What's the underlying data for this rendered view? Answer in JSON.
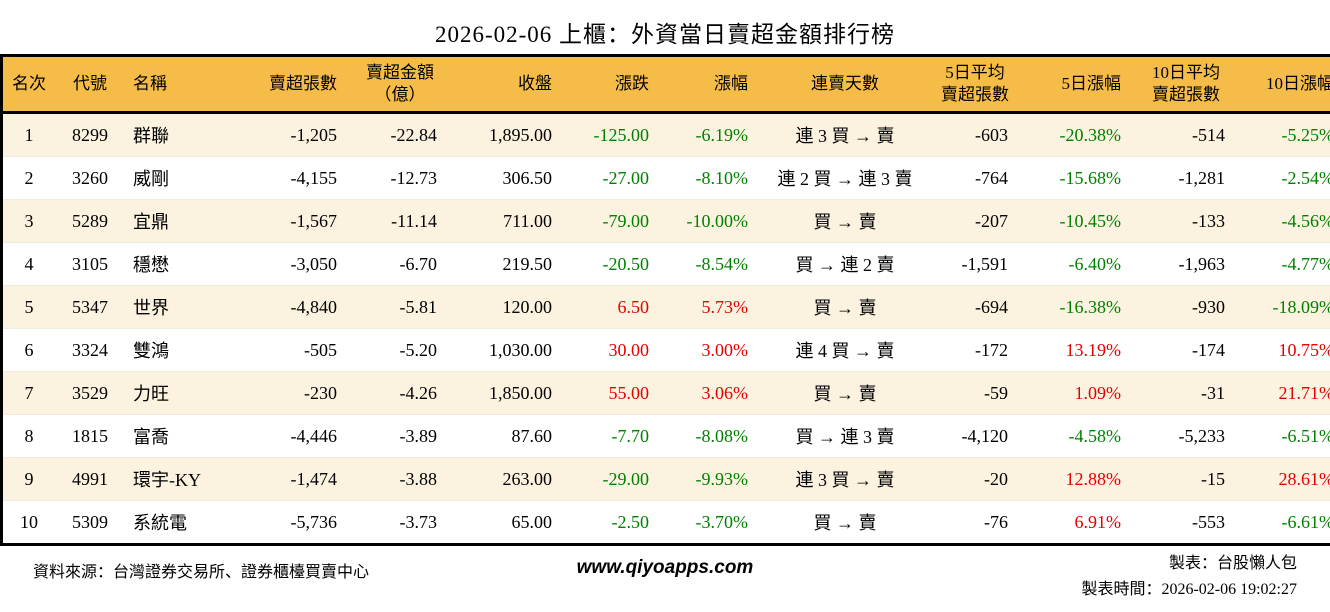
{
  "title": "2026-02-06 上櫃：外資當日賣超金額排行榜",
  "colors": {
    "up": "#e60000",
    "down": "#008000",
    "header_bg": "#f6bc48",
    "row_alt_bg": "#fbf2df",
    "border": "#000000"
  },
  "table": {
    "columns": [
      {
        "key": "rank",
        "label": "名次",
        "align": "center"
      },
      {
        "key": "code",
        "label": "代號",
        "align": "center"
      },
      {
        "key": "name",
        "label": "名稱",
        "align": "left"
      },
      {
        "key": "sell_shares",
        "label": "賣超張數",
        "align": "right"
      },
      {
        "key": "sell_amount",
        "label": "賣超金額\n（億）",
        "align": "center"
      },
      {
        "key": "close",
        "label": "收盤",
        "align": "right"
      },
      {
        "key": "change",
        "label": "漲跌",
        "align": "right"
      },
      {
        "key": "change_pct",
        "label": "漲幅",
        "align": "right"
      },
      {
        "key": "streak",
        "label": "連賣天數",
        "align": "center"
      },
      {
        "key": "avg5",
        "label": "5日平均\n賣超張數",
        "align": "center"
      },
      {
        "key": "pct5",
        "label": "5日漲幅",
        "align": "right"
      },
      {
        "key": "avg10",
        "label": "10日平均\n賣超張數",
        "align": "center"
      },
      {
        "key": "pct10",
        "label": "10日漲幅",
        "align": "right"
      }
    ],
    "rows": [
      {
        "rank": "1",
        "code": "8299",
        "name": "群聯",
        "sell_shares": "-1,205",
        "sell_amount": "-22.84",
        "close": "1,895.00",
        "change": "-125.00",
        "change_dir": "down",
        "change_pct": "-6.19%",
        "streak": "連 3 買 → 賣",
        "avg5": "-603",
        "pct5": "-20.38%",
        "pct5_dir": "down",
        "avg10": "-514",
        "pct10": "-5.25%",
        "pct10_dir": "down"
      },
      {
        "rank": "2",
        "code": "3260",
        "name": "威剛",
        "sell_shares": "-4,155",
        "sell_amount": "-12.73",
        "close": "306.50",
        "change": "-27.00",
        "change_dir": "down",
        "change_pct": "-8.10%",
        "streak": "連 2 買 → 連 3 賣",
        "avg5": "-764",
        "pct5": "-15.68%",
        "pct5_dir": "down",
        "avg10": "-1,281",
        "pct10": "-2.54%",
        "pct10_dir": "down"
      },
      {
        "rank": "3",
        "code": "5289",
        "name": "宜鼎",
        "sell_shares": "-1,567",
        "sell_amount": "-11.14",
        "close": "711.00",
        "change": "-79.00",
        "change_dir": "down",
        "change_pct": "-10.00%",
        "streak": "買 → 賣",
        "avg5": "-207",
        "pct5": "-10.45%",
        "pct5_dir": "down",
        "avg10": "-133",
        "pct10": "-4.56%",
        "pct10_dir": "down"
      },
      {
        "rank": "4",
        "code": "3105",
        "name": "穩懋",
        "sell_shares": "-3,050",
        "sell_amount": "-6.70",
        "close": "219.50",
        "change": "-20.50",
        "change_dir": "down",
        "change_pct": "-8.54%",
        "streak": "買 → 連 2 賣",
        "avg5": "-1,591",
        "pct5": "-6.40%",
        "pct5_dir": "down",
        "avg10": "-1,963",
        "pct10": "-4.77%",
        "pct10_dir": "down"
      },
      {
        "rank": "5",
        "code": "5347",
        "name": "世界",
        "sell_shares": "-4,840",
        "sell_amount": "-5.81",
        "close": "120.00",
        "change": "6.50",
        "change_dir": "up",
        "change_pct": "5.73%",
        "streak": "買 → 賣",
        "avg5": "-694",
        "pct5": "-16.38%",
        "pct5_dir": "down",
        "avg10": "-930",
        "pct10": "-18.09%",
        "pct10_dir": "down"
      },
      {
        "rank": "6",
        "code": "3324",
        "name": "雙鴻",
        "sell_shares": "-505",
        "sell_amount": "-5.20",
        "close": "1,030.00",
        "change": "30.00",
        "change_dir": "up",
        "change_pct": "3.00%",
        "streak": "連 4 買 → 賣",
        "avg5": "-172",
        "pct5": "13.19%",
        "pct5_dir": "up",
        "avg10": "-174",
        "pct10": "10.75%",
        "pct10_dir": "up"
      },
      {
        "rank": "7",
        "code": "3529",
        "name": "力旺",
        "sell_shares": "-230",
        "sell_amount": "-4.26",
        "close": "1,850.00",
        "change": "55.00",
        "change_dir": "up",
        "change_pct": "3.06%",
        "streak": "買 → 賣",
        "avg5": "-59",
        "pct5": "1.09%",
        "pct5_dir": "up",
        "avg10": "-31",
        "pct10": "21.71%",
        "pct10_dir": "up"
      },
      {
        "rank": "8",
        "code": "1815",
        "name": "富喬",
        "sell_shares": "-4,446",
        "sell_amount": "-3.89",
        "close": "87.60",
        "change": "-7.70",
        "change_dir": "down",
        "change_pct": "-8.08%",
        "streak": "買 → 連 3 賣",
        "avg5": "-4,120",
        "pct5": "-4.58%",
        "pct5_dir": "down",
        "avg10": "-5,233",
        "pct10": "-6.51%",
        "pct10_dir": "down"
      },
      {
        "rank": "9",
        "code": "4991",
        "name": "環宇-KY",
        "sell_shares": "-1,474",
        "sell_amount": "-3.88",
        "close": "263.00",
        "change": "-29.00",
        "change_dir": "down",
        "change_pct": "-9.93%",
        "streak": "連 3 買 → 賣",
        "avg5": "-20",
        "pct5": "12.88%",
        "pct5_dir": "up",
        "avg10": "-15",
        "pct10": "28.61%",
        "pct10_dir": "up"
      },
      {
        "rank": "10",
        "code": "5309",
        "name": "系統電",
        "sell_shares": "-5,736",
        "sell_amount": "-3.73",
        "close": "65.00",
        "change": "-2.50",
        "change_dir": "down",
        "change_pct": "-3.70%",
        "streak": "買 → 賣",
        "avg5": "-76",
        "pct5": "6.91%",
        "pct5_dir": "up",
        "avg10": "-553",
        "pct10": "-6.61%",
        "pct10_dir": "down"
      }
    ]
  },
  "footer": {
    "source": "資料來源：台灣證券交易所、證券櫃檯買賣中心",
    "website": "www.qiyoapps.com",
    "made_by": "製表：台股懶人包",
    "made_time": "製表時間：2026-02-06 19:02:27"
  }
}
